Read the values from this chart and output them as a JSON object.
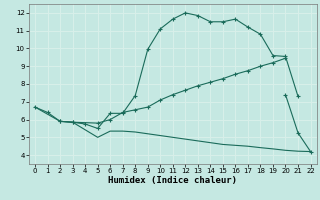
{
  "xlabel": "Humidex (Indice chaleur)",
  "bg_color": "#c5e8e2",
  "grid_color": "#d8f0ea",
  "line_color": "#1a6b5a",
  "xlim": [
    -0.5,
    22.5
  ],
  "ylim": [
    3.5,
    12.5
  ],
  "xticks": [
    0,
    1,
    2,
    3,
    4,
    5,
    6,
    7,
    8,
    9,
    10,
    11,
    12,
    13,
    14,
    15,
    16,
    17,
    18,
    19,
    20,
    21,
    22
  ],
  "yticks": [
    4,
    5,
    6,
    7,
    8,
    9,
    10,
    11,
    12
  ],
  "curve1_x": [
    0,
    1,
    2,
    3,
    4,
    5,
    6,
    7,
    8,
    9,
    10,
    11,
    12,
    13,
    14,
    15,
    16,
    17,
    18,
    19,
    20,
    21
  ],
  "curve1_y": [
    6.7,
    6.4,
    5.9,
    5.85,
    5.75,
    5.5,
    6.35,
    6.35,
    7.35,
    9.95,
    11.1,
    11.65,
    12.0,
    11.85,
    11.5,
    11.5,
    11.65,
    11.2,
    10.8,
    9.6,
    9.55,
    7.3
  ],
  "curve2_x": [
    2,
    3,
    5,
    6,
    7,
    8,
    9,
    10,
    11,
    12,
    13,
    14,
    15,
    16,
    17,
    18,
    19,
    20
  ],
  "curve2_y": [
    5.9,
    5.85,
    5.8,
    6.0,
    6.4,
    6.55,
    6.7,
    7.1,
    7.4,
    7.65,
    7.9,
    8.1,
    8.3,
    8.55,
    8.75,
    9.0,
    9.2,
    9.45
  ],
  "curve3_x": [
    20,
    21,
    22
  ],
  "curve3_y": [
    7.4,
    5.25,
    4.2
  ],
  "lower_x": [
    0,
    2,
    3,
    5,
    6,
    7,
    8,
    9,
    10,
    11,
    12,
    13,
    14,
    15,
    16,
    17,
    18,
    19,
    20,
    21,
    22
  ],
  "lower_y": [
    6.7,
    5.9,
    5.85,
    5.0,
    5.35,
    5.35,
    5.3,
    5.2,
    5.1,
    5.0,
    4.9,
    4.8,
    4.7,
    4.6,
    4.55,
    4.5,
    4.42,
    4.35,
    4.27,
    4.22,
    4.2
  ]
}
